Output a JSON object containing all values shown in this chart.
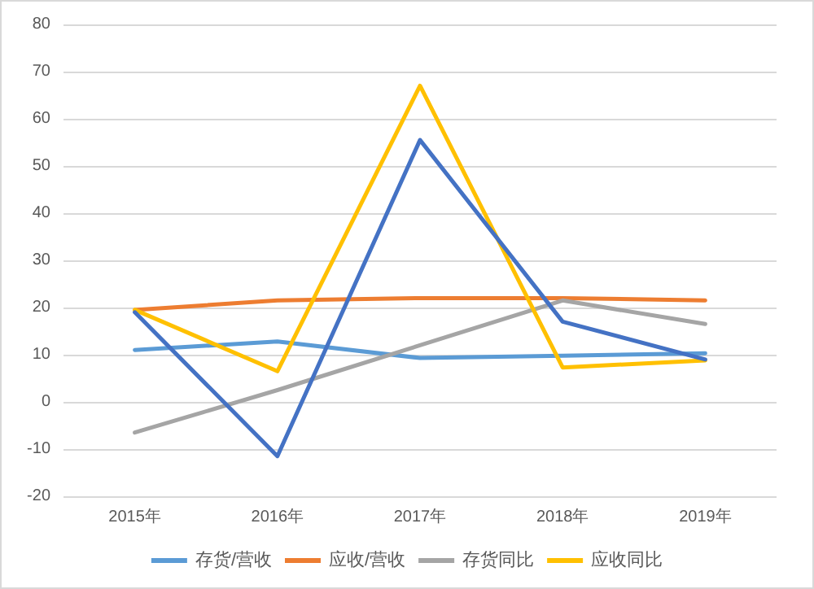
{
  "chart_data": {
    "type": "line",
    "categories": [
      "2015年",
      "2016年",
      "2017年",
      "2018年",
      "2019年"
    ],
    "series": [
      {
        "name": "存货/营收",
        "color": "#5b9bd5",
        "values": [
          11,
          12.8,
          9.3,
          9.8,
          10.3
        ]
      },
      {
        "name": "应收/营收",
        "color": "#ed7d31",
        "values": [
          19.5,
          21.5,
          22,
          22,
          21.5
        ]
      },
      {
        "name": "存货同比",
        "color": "#a5a5a5",
        "values": [
          -6.5,
          2.5,
          12,
          21.5,
          16.5
        ]
      },
      {
        "name": "应收同比",
        "color": "#ffc000",
        "values": [
          19.5,
          6.5,
          67,
          7.3,
          8.8
        ]
      },
      {
        "color": "#4472c4",
        "values": [
          19,
          -11.5,
          55.5,
          17,
          9
        ]
      }
    ],
    "ylim": [
      -20,
      80
    ],
    "yticks": [
      -20,
      -10,
      0,
      10,
      20,
      30,
      40,
      50,
      60,
      70,
      80
    ],
    "grid": "y",
    "legend": "bottom",
    "marker": "none",
    "line_style": "solid"
  }
}
